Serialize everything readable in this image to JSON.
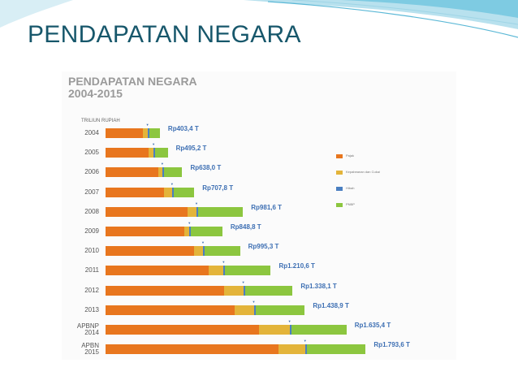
{
  "slide": {
    "title": "PENDAPATAN NEGARA"
  },
  "figure": {
    "title_line1": "PENDAPATAN NEGARA",
    "title_line2": "2004-2015",
    "unit": "TRILIUN RUPIAH"
  },
  "legend": [
    {
      "label": "Pajak",
      "color": "#e8761e"
    },
    {
      "label": "Kepabeanan dan Cukai",
      "color": "#e3b43a"
    },
    {
      "label": "Hibah",
      "color": "#4a7fc1"
    },
    {
      "label": "PNBP",
      "color": "#8cc63f"
    }
  ],
  "rows": [
    {
      "year1": "2004",
      "year2": "",
      "pajak": 212,
      "kep": 28,
      "hibah": 1,
      "pnbp": 62,
      "total": "Rp403,4 T"
    },
    {
      "year1": "2005",
      "year2": "",
      "pajak": 248,
      "kep": 27,
      "hibah": 1,
      "pnbp": 72,
      "total": "Rp495,2 T"
    },
    {
      "year1": "2006",
      "year2": "",
      "pajak": 300,
      "kep": 25,
      "hibah": 1,
      "pnbp": 105,
      "total": "Rp638,0 T"
    },
    {
      "year1": "2007",
      "year2": "",
      "pajak": 336,
      "kep": 45,
      "hibah": 1,
      "pnbp": 118,
      "total": "Rp707,8 T"
    },
    {
      "year1": "2008",
      "year2": "",
      "pajak": 469,
      "kep": 52,
      "hibah": 2,
      "pnbp": 257,
      "total": "Rp981,6 T"
    },
    {
      "year1": "2009",
      "year2": "",
      "pajak": 450,
      "kep": 30,
      "hibah": 2,
      "pnbp": 180,
      "total": "Rp848,8 T"
    },
    {
      "year1": "2010",
      "year2": "",
      "pajak": 508,
      "kep": 50,
      "hibah": 3,
      "pnbp": 203,
      "total": "Rp995,3 T"
    },
    {
      "year1": "2011",
      "year2": "",
      "pajak": 593,
      "kep": 83,
      "hibah": 5,
      "pnbp": 261,
      "total": "Rp1.210,6 T"
    },
    {
      "year1": "2012",
      "year2": "",
      "pajak": 679,
      "kep": 110,
      "hibah": 5,
      "pnbp": 273,
      "total": "Rp1.338,1 T"
    },
    {
      "year1": "2013",
      "year2": "",
      "pajak": 739,
      "kep": 110,
      "hibah": 7,
      "pnbp": 283,
      "total": "Rp1.438,9 T"
    },
    {
      "year1": "APBNP",
      "year2": "2014",
      "pajak": 881,
      "kep": 173,
      "hibah": 5,
      "pnbp": 317,
      "total": "Rp1.635,4 T"
    },
    {
      "year1": "APBN",
      "year2": "2015",
      "pajak": 993,
      "kep": 150,
      "hibah": 3,
      "pnbp": 338,
      "total": "Rp1.793,6 T"
    }
  ]
}
